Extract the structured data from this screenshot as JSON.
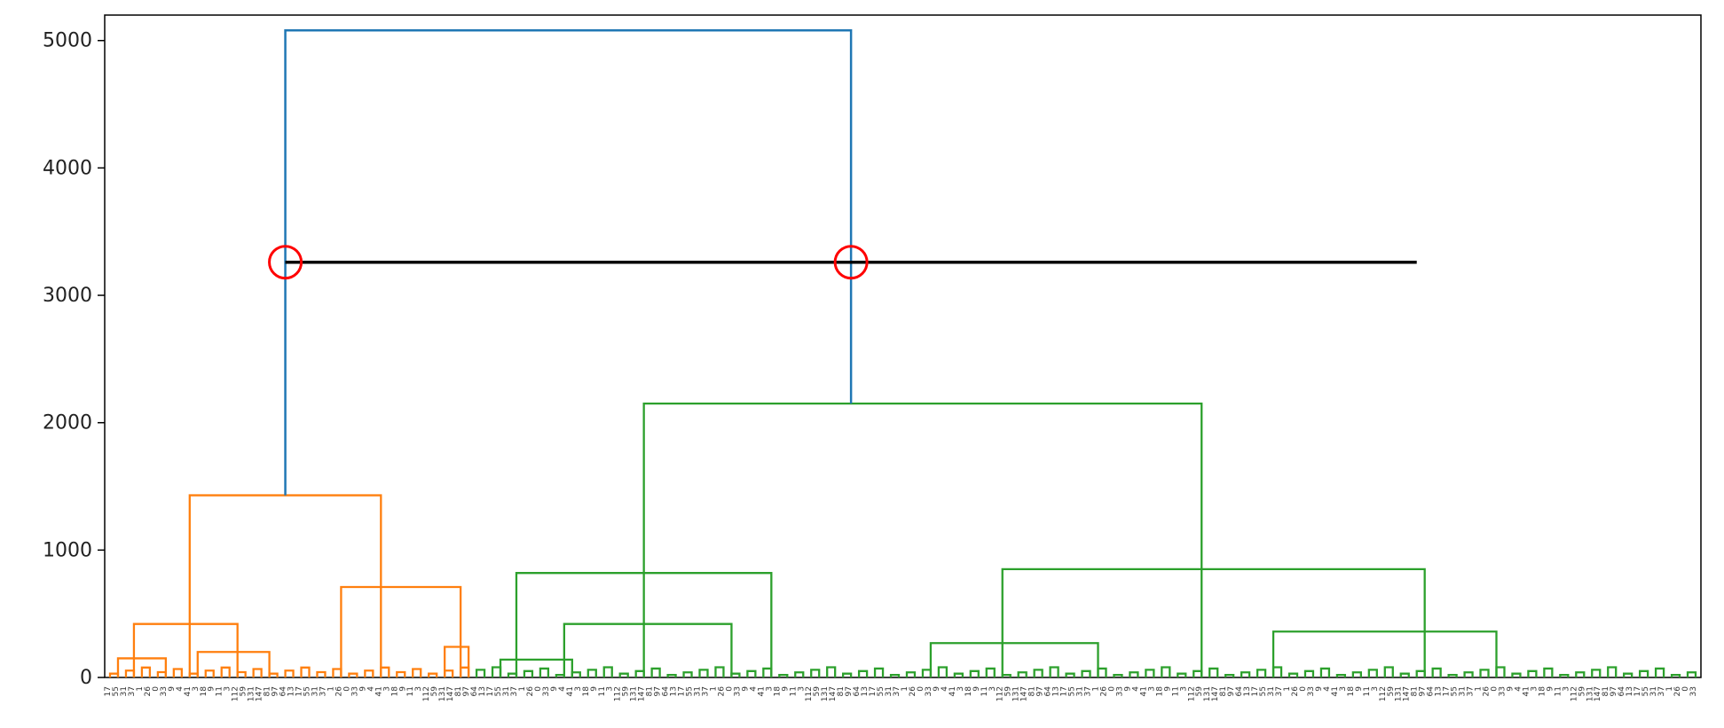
{
  "chart_data": {
    "type": "dendrogram",
    "title": "",
    "xlabel": "",
    "ylabel": "",
    "ylim": [
      0,
      5200
    ],
    "y_ticks": [
      0,
      1000,
      2000,
      3000,
      4000,
      5000
    ],
    "y_tick_labels": [
      "0",
      "1000",
      "2000",
      "3000",
      "4000",
      "5000"
    ],
    "leaf_count": 200,
    "leaf_labels_visible": [
      "17",
      "55",
      "31",
      "37",
      "1",
      "26",
      "0",
      "33",
      "9",
      "4",
      "41",
      "3",
      "18",
      "9",
      "11",
      "3",
      "112",
      "59",
      "131",
      "147",
      "81",
      "97",
      "64",
      "13"
    ],
    "colors": {
      "orange": "#ff7f0e",
      "green": "#2ca02c",
      "blue": "#1f77b4",
      "cut_line": "#000000",
      "marker": "#ff0000"
    },
    "clusters": [
      {
        "name": "orange",
        "leaf_range": [
          0,
          46
        ],
        "root_height": 1430
      },
      {
        "name": "green",
        "leaf_range": [
          46,
          200
        ],
        "root_height": 2150
      }
    ],
    "top_merge": {
      "height": 5080,
      "color": "blue"
    },
    "merges": [
      {
        "color": "orange",
        "height": 1430,
        "left": 400,
        "right": 700
      },
      {
        "color": "orange",
        "height": 420,
        "left": 300,
        "right": 200
      },
      {
        "color": "orange",
        "height": 150,
        "left": 300,
        "right": 300
      },
      {
        "color": "orange",
        "height": 200,
        "left": 400,
        "right": 80
      },
      {
        "color": "orange",
        "height": 710,
        "left": 110,
        "right": 240
      },
      {
        "color": "orange",
        "height": 240,
        "left": 100,
        "right": 100
      },
      {
        "color": "green",
        "height": 2150,
        "left": 820,
        "right": 850
      },
      {
        "color": "green",
        "height": 820,
        "left": 140,
        "right": 420
      },
      {
        "color": "green",
        "height": 420,
        "left": 110,
        "right": 180
      },
      {
        "color": "green",
        "height": 850,
        "left": 270,
        "right": 360
      },
      {
        "color": "green",
        "height": 270,
        "left": 60,
        "right": 160
      },
      {
        "color": "green",
        "height": 360,
        "left": 100,
        "right": 160
      }
    ],
    "cut_line": {
      "height": 3260,
      "x_start_leaf": 22,
      "x_end_leaf": 164
    },
    "annotations": [
      {
        "type": "circle",
        "color": "red",
        "height": 3260,
        "at": "blue-left-branch"
      },
      {
        "type": "circle",
        "color": "red",
        "height": 3260,
        "at": "blue-right-branch"
      }
    ]
  }
}
